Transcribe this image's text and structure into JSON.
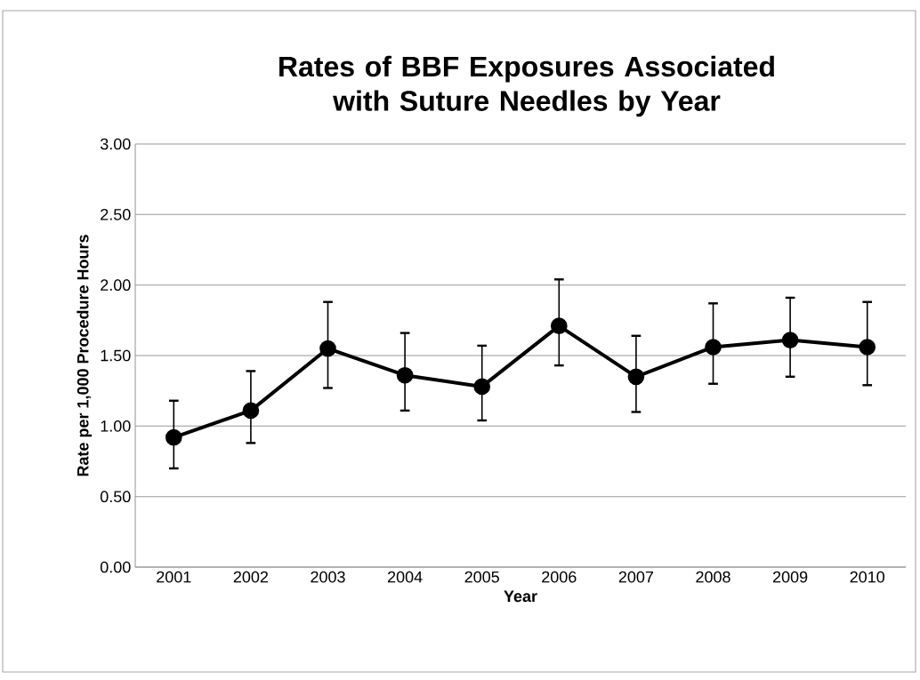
{
  "chart_data": {
    "type": "line",
    "title": "Rates of BBF Exposures Associated with Suture Needles by Year",
    "xlabel": "Year",
    "ylabel": "Rate per 1,000 Procedure Hours",
    "categories": [
      "2001",
      "2002",
      "2003",
      "2004",
      "2005",
      "2006",
      "2007",
      "2008",
      "2009",
      "2010"
    ],
    "values": [
      0.92,
      1.11,
      1.55,
      1.36,
      1.28,
      1.71,
      1.35,
      1.56,
      1.61,
      1.56
    ],
    "errors": [
      [
        0.7,
        1.18
      ],
      [
        0.88,
        1.39
      ],
      [
        1.27,
        1.88
      ],
      [
        1.11,
        1.66
      ],
      [
        1.04,
        1.57
      ],
      [
        1.43,
        2.04
      ],
      [
        1.1,
        1.64
      ],
      [
        1.3,
        1.87
      ],
      [
        1.35,
        1.91
      ],
      [
        1.29,
        1.88
      ]
    ],
    "color": "#000000",
    "marker": "circle",
    "line_style": "solid",
    "grid": "y",
    "ylim": [
      0,
      3
    ],
    "yticks": [
      {
        "value": 0,
        "label": "0.00"
      },
      {
        "value": 0.5,
        "label": "0.50"
      },
      {
        "value": 1,
        "label": "1.00"
      },
      {
        "value": 1.5,
        "label": "1.50"
      },
      {
        "value": 2,
        "label": "2.00"
      },
      {
        "value": 2.5,
        "label": "2.50"
      },
      {
        "value": 3,
        "label": "3.00"
      }
    ]
  }
}
